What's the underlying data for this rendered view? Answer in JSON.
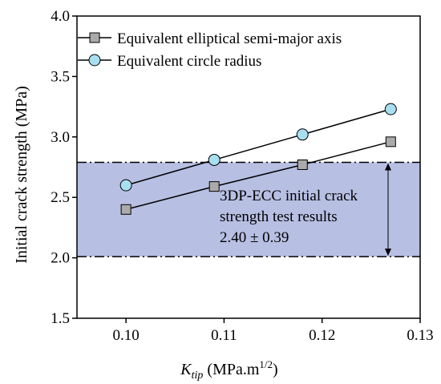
{
  "chart_data": {
    "type": "line",
    "xlabel": {
      "main": "K",
      "sub": "tip",
      "rest": " (MPa.m",
      "sup": "1/2",
      "close": ")"
    },
    "ylabel": "Initial crack strength (MPa)",
    "xlim": [
      0.095,
      0.13
    ],
    "ylim": [
      1.5,
      4.0
    ],
    "xticks": [
      "0.10",
      "0.11",
      "0.12",
      "0.13"
    ],
    "yticks": [
      "1.5",
      "2.0",
      "2.5",
      "3.0",
      "3.5",
      "4.0"
    ],
    "grid": false,
    "legend_position": "top-left",
    "series": [
      {
        "name": "Equivalent elliptical semi-major axis",
        "marker": "square",
        "color": "#aaaaaa",
        "x": [
          0.1,
          0.109,
          0.118,
          0.127
        ],
        "y": [
          2.4,
          2.59,
          2.77,
          2.96
        ]
      },
      {
        "name": "Equivalent circle radius",
        "marker": "circle",
        "color": "#a8dff0",
        "x": [
          0.1,
          0.109,
          0.118,
          0.127
        ],
        "y": [
          2.6,
          2.81,
          3.02,
          3.23
        ]
      }
    ],
    "band": {
      "lower": 2.01,
      "upper": 2.79,
      "color": "#b7bfe3",
      "annotation": [
        "3DP-ECC initial crack",
        "strength test results",
        "2.40 ± 0.39"
      ]
    }
  }
}
